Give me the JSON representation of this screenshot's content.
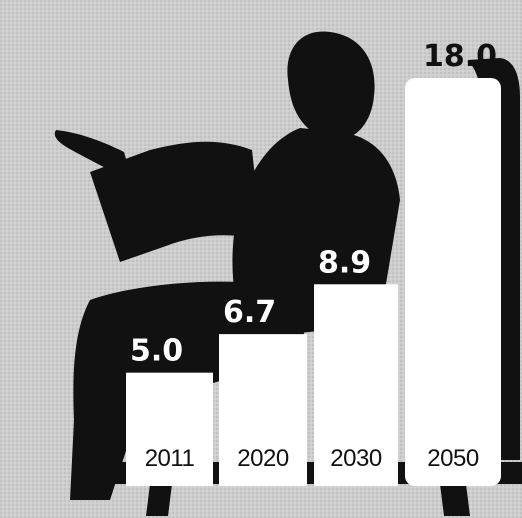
{
  "chart_data": {
    "type": "bar",
    "categories": [
      "2011",
      "2020",
      "2030",
      "2050"
    ],
    "values": [
      5.0,
      6.7,
      8.9,
      18.0
    ],
    "value_labels": [
      "5.0",
      "6.7",
      "8.9",
      "18.0"
    ],
    "title": "",
    "xlabel": "",
    "ylabel": "",
    "ylim": [
      0,
      18.0
    ],
    "grid": false,
    "legend": "none",
    "colors": {
      "bar_fill": "#ffffff",
      "silhouette": "#111111",
      "background": "#cfcfcf",
      "value_label_on_dark": "#ffffff",
      "value_label_on_light": "#111111",
      "category_label": "#111111"
    }
  }
}
